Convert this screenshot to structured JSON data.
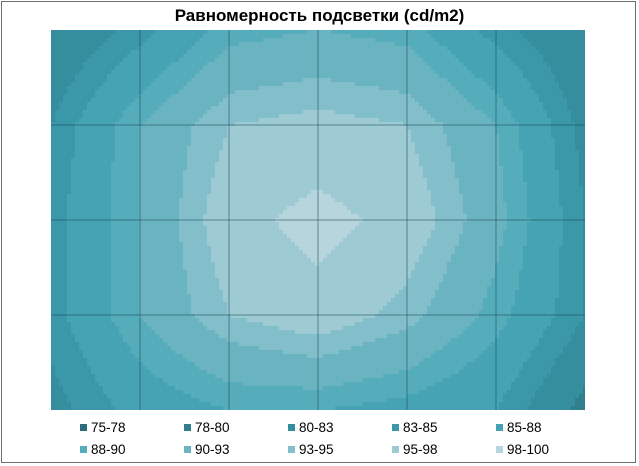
{
  "chart_data": {
    "type": "heatmap",
    "title": "Равномерность подсветки (cd/m2)",
    "legend": {
      "placement": "bottom",
      "entries": [
        {
          "label": "75-78",
          "color": "#2d6d7b"
        },
        {
          "label": "78-80",
          "color": "#317f8d"
        },
        {
          "label": "80-83",
          "color": "#348e9d"
        },
        {
          "label": "83-85",
          "color": "#3a98a8"
        },
        {
          "label": "85-88",
          "color": "#46a3b3"
        },
        {
          "label": "88-90",
          "color": "#55acbb"
        },
        {
          "label": "90-93",
          "color": "#6ab4c2"
        },
        {
          "label": "93-95",
          "color": "#83bfcb"
        },
        {
          "label": "95-98",
          "color": "#9ecad4"
        },
        {
          "label": "98-100",
          "color": "#b6d5dc"
        }
      ]
    },
    "grid": {
      "columns": 6,
      "rows": 4,
      "gridlines": true
    },
    "matrix": [
      [
        80,
        84,
        89,
        90,
        89,
        84,
        80
      ],
      [
        83,
        90,
        95,
        96,
        95,
        90,
        82
      ],
      [
        84,
        90,
        97,
        99,
        97,
        91,
        83
      ],
      [
        84,
        90,
        95,
        97,
        94,
        89,
        83
      ],
      [
        82,
        86,
        88,
        88,
        87,
        85,
        79
      ]
    ]
  }
}
